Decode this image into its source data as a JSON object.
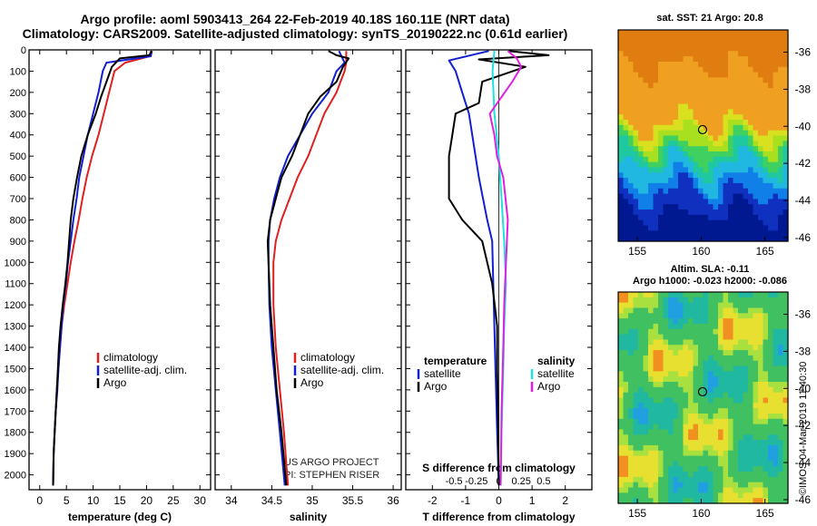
{
  "title_line1": "Argo profile: aoml 5903413_264 22-Feb-2019 40.18S 160.11E (NRT data)",
  "title_line2": "Climatology: CARS2009. Satellite-adjusted climatology: synTS_20190222.nc (0.61d earlier)",
  "credit": "©IMOS 04-Mar-2019 11:40:30",
  "acknowledgement": [
    "US ARGO PROJECT",
    "PI: STEPHEN RISER"
  ],
  "colors": {
    "climatology": "#e02020",
    "satellite": "#1020d0",
    "argo": "#000000",
    "sal_satellite": "#20e0e0",
    "sal_argo": "#e020e0"
  },
  "chart_data": [
    {
      "type": "line",
      "xlabel": "temperature (deg C)",
      "xlim": [
        -2,
        32
      ],
      "xticks": [
        0,
        5,
        10,
        15,
        20,
        25,
        30
      ],
      "ylim": [
        2070,
        0
      ],
      "yticks": [
        0,
        100,
        200,
        300,
        400,
        500,
        600,
        700,
        800,
        900,
        1000,
        1100,
        1200,
        1300,
        1400,
        1500,
        1600,
        1700,
        1800,
        1900,
        2000
      ],
      "legend": [
        "climatology",
        "satellite-adj. clim.",
        "Argo"
      ],
      "series": [
        {
          "key": "climatology",
          "color": "#e02020",
          "points": [
            [
              20.8,
              5
            ],
            [
              20.6,
              30
            ],
            [
              16,
              60
            ],
            [
              14,
              100
            ],
            [
              13,
              200
            ],
            [
              12,
              300
            ],
            [
              11,
              400
            ],
            [
              9.8,
              500
            ],
            [
              8.8,
              600
            ],
            [
              8,
              700
            ],
            [
              7.3,
              800
            ],
            [
              6.5,
              900
            ],
            [
              5.8,
              1000
            ],
            [
              5.2,
              1100
            ],
            [
              4.6,
              1200
            ],
            [
              4.1,
              1300
            ],
            [
              3.8,
              1400
            ],
            [
              3.5,
              1500
            ],
            [
              3.2,
              1600
            ],
            [
              3,
              1700
            ],
            [
              2.8,
              1800
            ],
            [
              2.6,
              1900
            ],
            [
              2.5,
              2050
            ]
          ]
        },
        {
          "key": "satellite",
          "color": "#1020d0",
          "points": [
            [
              21,
              5
            ],
            [
              20.8,
              30
            ],
            [
              12.5,
              60
            ],
            [
              11.8,
              100
            ],
            [
              11,
              200
            ],
            [
              10,
              300
            ],
            [
              9,
              400
            ],
            [
              8.2,
              500
            ],
            [
              7.4,
              600
            ],
            [
              6.9,
              700
            ],
            [
              6.3,
              800
            ],
            [
              5.8,
              900
            ],
            [
              5.3,
              1000
            ],
            [
              4.9,
              1100
            ],
            [
              4.4,
              1200
            ],
            [
              4.1,
              1300
            ],
            [
              3.8,
              1400
            ],
            [
              3.5,
              1500
            ],
            [
              3.3,
              1600
            ],
            [
              3,
              1700
            ],
            [
              2.8,
              1800
            ],
            [
              2.6,
              1900
            ],
            [
              2.5,
              2050
            ]
          ]
        },
        {
          "key": "argo",
          "color": "#000000",
          "points": [
            [
              21,
              5
            ],
            [
              20.5,
              25
            ],
            [
              15,
              40
            ],
            [
              13.5,
              80
            ],
            [
              12.5,
              150
            ],
            [
              11.5,
              220
            ],
            [
              10.5,
              300
            ],
            [
              9,
              400
            ],
            [
              7.8,
              500
            ],
            [
              7,
              600
            ],
            [
              6.3,
              700
            ],
            [
              5.8,
              800
            ],
            [
              5.5,
              900
            ],
            [
              5.2,
              1000
            ],
            [
              4.8,
              1100
            ],
            [
              4.3,
              1200
            ],
            [
              3.9,
              1300
            ],
            [
              3.6,
              1400
            ],
            [
              3.4,
              1500
            ],
            [
              3.2,
              1600
            ],
            [
              3,
              1700
            ],
            [
              2.8,
              1800
            ],
            [
              2.6,
              1900
            ],
            [
              2.5,
              2050
            ]
          ]
        }
      ]
    },
    {
      "type": "line",
      "xlabel": "salinity",
      "xlim": [
        33.8,
        36.1
      ],
      "xticks": [
        34,
        34.5,
        35,
        35.5,
        36
      ],
      "ylim": [
        2070,
        0
      ],
      "legend": [
        "climatology",
        "satellite-adj. clim.",
        "Argo"
      ],
      "series": [
        {
          "key": "climatology",
          "color": "#e02020",
          "points": [
            [
              35.42,
              5
            ],
            [
              35.42,
              60
            ],
            [
              35.4,
              100
            ],
            [
              35.3,
              200
            ],
            [
              35.15,
              300
            ],
            [
              35.05,
              400
            ],
            [
              34.95,
              500
            ],
            [
              34.82,
              600
            ],
            [
              34.72,
              700
            ],
            [
              34.62,
              800
            ],
            [
              34.55,
              900
            ],
            [
              34.52,
              1000
            ],
            [
              34.52,
              1200
            ],
            [
              34.55,
              1400
            ],
            [
              34.6,
              1600
            ],
            [
              34.65,
              1800
            ],
            [
              34.7,
              2050
            ]
          ]
        },
        {
          "key": "satellite",
          "color": "#1020d0",
          "points": [
            [
              35.33,
              5
            ],
            [
              35.4,
              60
            ],
            [
              35.3,
              100
            ],
            [
              35.2,
              200
            ],
            [
              35.0,
              300
            ],
            [
              34.85,
              400
            ],
            [
              34.7,
              500
            ],
            [
              34.6,
              600
            ],
            [
              34.53,
              700
            ],
            [
              34.48,
              800
            ],
            [
              34.46,
              900
            ],
            [
              34.46,
              1000
            ],
            [
              34.47,
              1200
            ],
            [
              34.5,
              1400
            ],
            [
              34.55,
              1600
            ],
            [
              34.6,
              1800
            ],
            [
              34.66,
              2050
            ]
          ]
        },
        {
          "key": "argo",
          "color": "#000000",
          "points": [
            [
              35.2,
              5
            ],
            [
              35.3,
              25
            ],
            [
              35.45,
              40
            ],
            [
              35.38,
              80
            ],
            [
              35.3,
              150
            ],
            [
              35.1,
              220
            ],
            [
              34.95,
              300
            ],
            [
              34.85,
              400
            ],
            [
              34.75,
              500
            ],
            [
              34.62,
              600
            ],
            [
              34.55,
              700
            ],
            [
              34.48,
              800
            ],
            [
              34.45,
              900
            ],
            [
              34.46,
              1000
            ],
            [
              34.48,
              1200
            ],
            [
              34.52,
              1400
            ],
            [
              34.56,
              1600
            ],
            [
              34.62,
              1800
            ],
            [
              34.68,
              2050
            ]
          ]
        }
      ]
    },
    {
      "type": "line",
      "xlabel": "T difference from climatology",
      "xlabel_top": "S difference from climatology",
      "xlim": [
        -2.8,
        2.8
      ],
      "xticks": [
        -2,
        -1,
        0,
        1,
        2
      ],
      "sticks": [
        -0.5,
        -0.25,
        0,
        0.25,
        0.5
      ],
      "sticks_labels": [
        "-0.5",
        "-0.25",
        "0",
        "0.25",
        "0.5"
      ],
      "ylim": [
        2070,
        0
      ],
      "legend_left_title": "temperature",
      "legend_left": [
        "satellite",
        "Argo"
      ],
      "legend_right_title": "salinity",
      "legend_right": [
        "satellite",
        "Argo"
      ],
      "series": [
        {
          "key": "t_satellite",
          "color": "#1020d0",
          "points": [
            [
              -0.3,
              5
            ],
            [
              -1.5,
              50
            ],
            [
              -1.3,
              100
            ],
            [
              -1.1,
              200
            ],
            [
              -0.9,
              300
            ],
            [
              -0.8,
              400
            ],
            [
              -0.6,
              600
            ],
            [
              -0.35,
              800
            ],
            [
              -0.2,
              900
            ],
            [
              -0.15,
              1200
            ],
            [
              -0.1,
              1500
            ],
            [
              -0.05,
              1800
            ],
            [
              0,
              2050
            ]
          ]
        },
        {
          "key": "t_argo",
          "color": "#000000",
          "points": [
            [
              0.3,
              5
            ],
            [
              1.5,
              25
            ],
            [
              -0.6,
              45
            ],
            [
              0.8,
              80
            ],
            [
              -0.5,
              150
            ],
            [
              -0.6,
              250
            ],
            [
              -1.3,
              300
            ],
            [
              -1.4,
              400
            ],
            [
              -1.5,
              500
            ],
            [
              -1.5,
              700
            ],
            [
              -1.1,
              800
            ],
            [
              -0.5,
              900
            ],
            [
              -0.2,
              1100
            ],
            [
              -0.05,
              1300
            ],
            [
              -0.05,
              1500
            ],
            [
              -0.02,
              1800
            ],
            [
              0,
              2050
            ]
          ]
        },
        {
          "key": "s_satellite",
          "color": "#20e0e0",
          "points": [
            [
              -0.05,
              5
            ],
            [
              -0.07,
              100
            ],
            [
              -0.05,
              300
            ],
            [
              0,
              500
            ],
            [
              0.03,
              700
            ],
            [
              0.06,
              900
            ],
            [
              0.08,
              1100
            ],
            [
              0.06,
              1300
            ],
            [
              0.05,
              1500
            ],
            [
              0.03,
              1800
            ],
            [
              0.02,
              2050
            ]
          ]
        },
        {
          "key": "s_argo",
          "color": "#e020e0",
          "points": [
            [
              0.1,
              5
            ],
            [
              0.2,
              40
            ],
            [
              0.25,
              80
            ],
            [
              0.15,
              150
            ],
            [
              -0.1,
              300
            ],
            [
              -0.05,
              400
            ],
            [
              -0.02,
              500
            ],
            [
              0.05,
              600
            ],
            [
              0.1,
              800
            ],
            [
              0.08,
              1000
            ],
            [
              0.06,
              1200
            ],
            [
              0.05,
              1400
            ],
            [
              0.03,
              1700
            ],
            [
              0.02,
              2050
            ]
          ]
        }
      ]
    },
    {
      "type": "heatmap",
      "title": "sat. SST: 21 Argo: 20.8",
      "xticks": [
        155,
        160,
        165
      ],
      "yticks": [
        -36,
        -38,
        -40,
        -42,
        -44,
        -46
      ],
      "xlim": [
        153.5,
        166.8
      ],
      "ylim": [
        -46.2,
        -34.8
      ],
      "marker": {
        "lon": 160.11,
        "lat": -40.18
      }
    },
    {
      "type": "heatmap",
      "title_line1": "Altim. SLA: -0.11",
      "title_line2": "Argo h1000: -0.023 h2000: -0.086",
      "xticks": [
        155,
        160,
        165
      ],
      "yticks": [
        -36,
        -38,
        -40,
        -42,
        -44,
        -46
      ],
      "xlim": [
        153.5,
        166.8
      ],
      "ylim": [
        -46.2,
        -34.8
      ],
      "marker": {
        "lon": 160.11,
        "lat": -40.18
      }
    }
  ]
}
